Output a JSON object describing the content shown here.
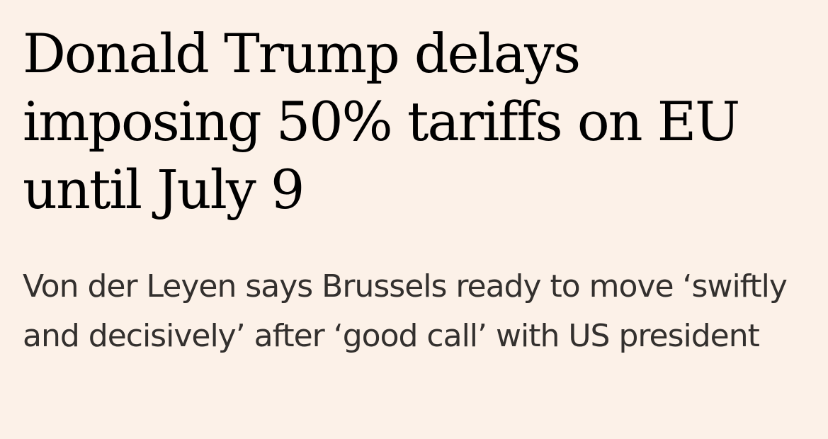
{
  "article": {
    "headline": "Donald Trump delays imposing 50% tariffs on EU until July 9",
    "standfirst": "Von der Leyen says Brussels ready to move ‘swiftly and decisively’ after ‘good call’ with US president"
  }
}
